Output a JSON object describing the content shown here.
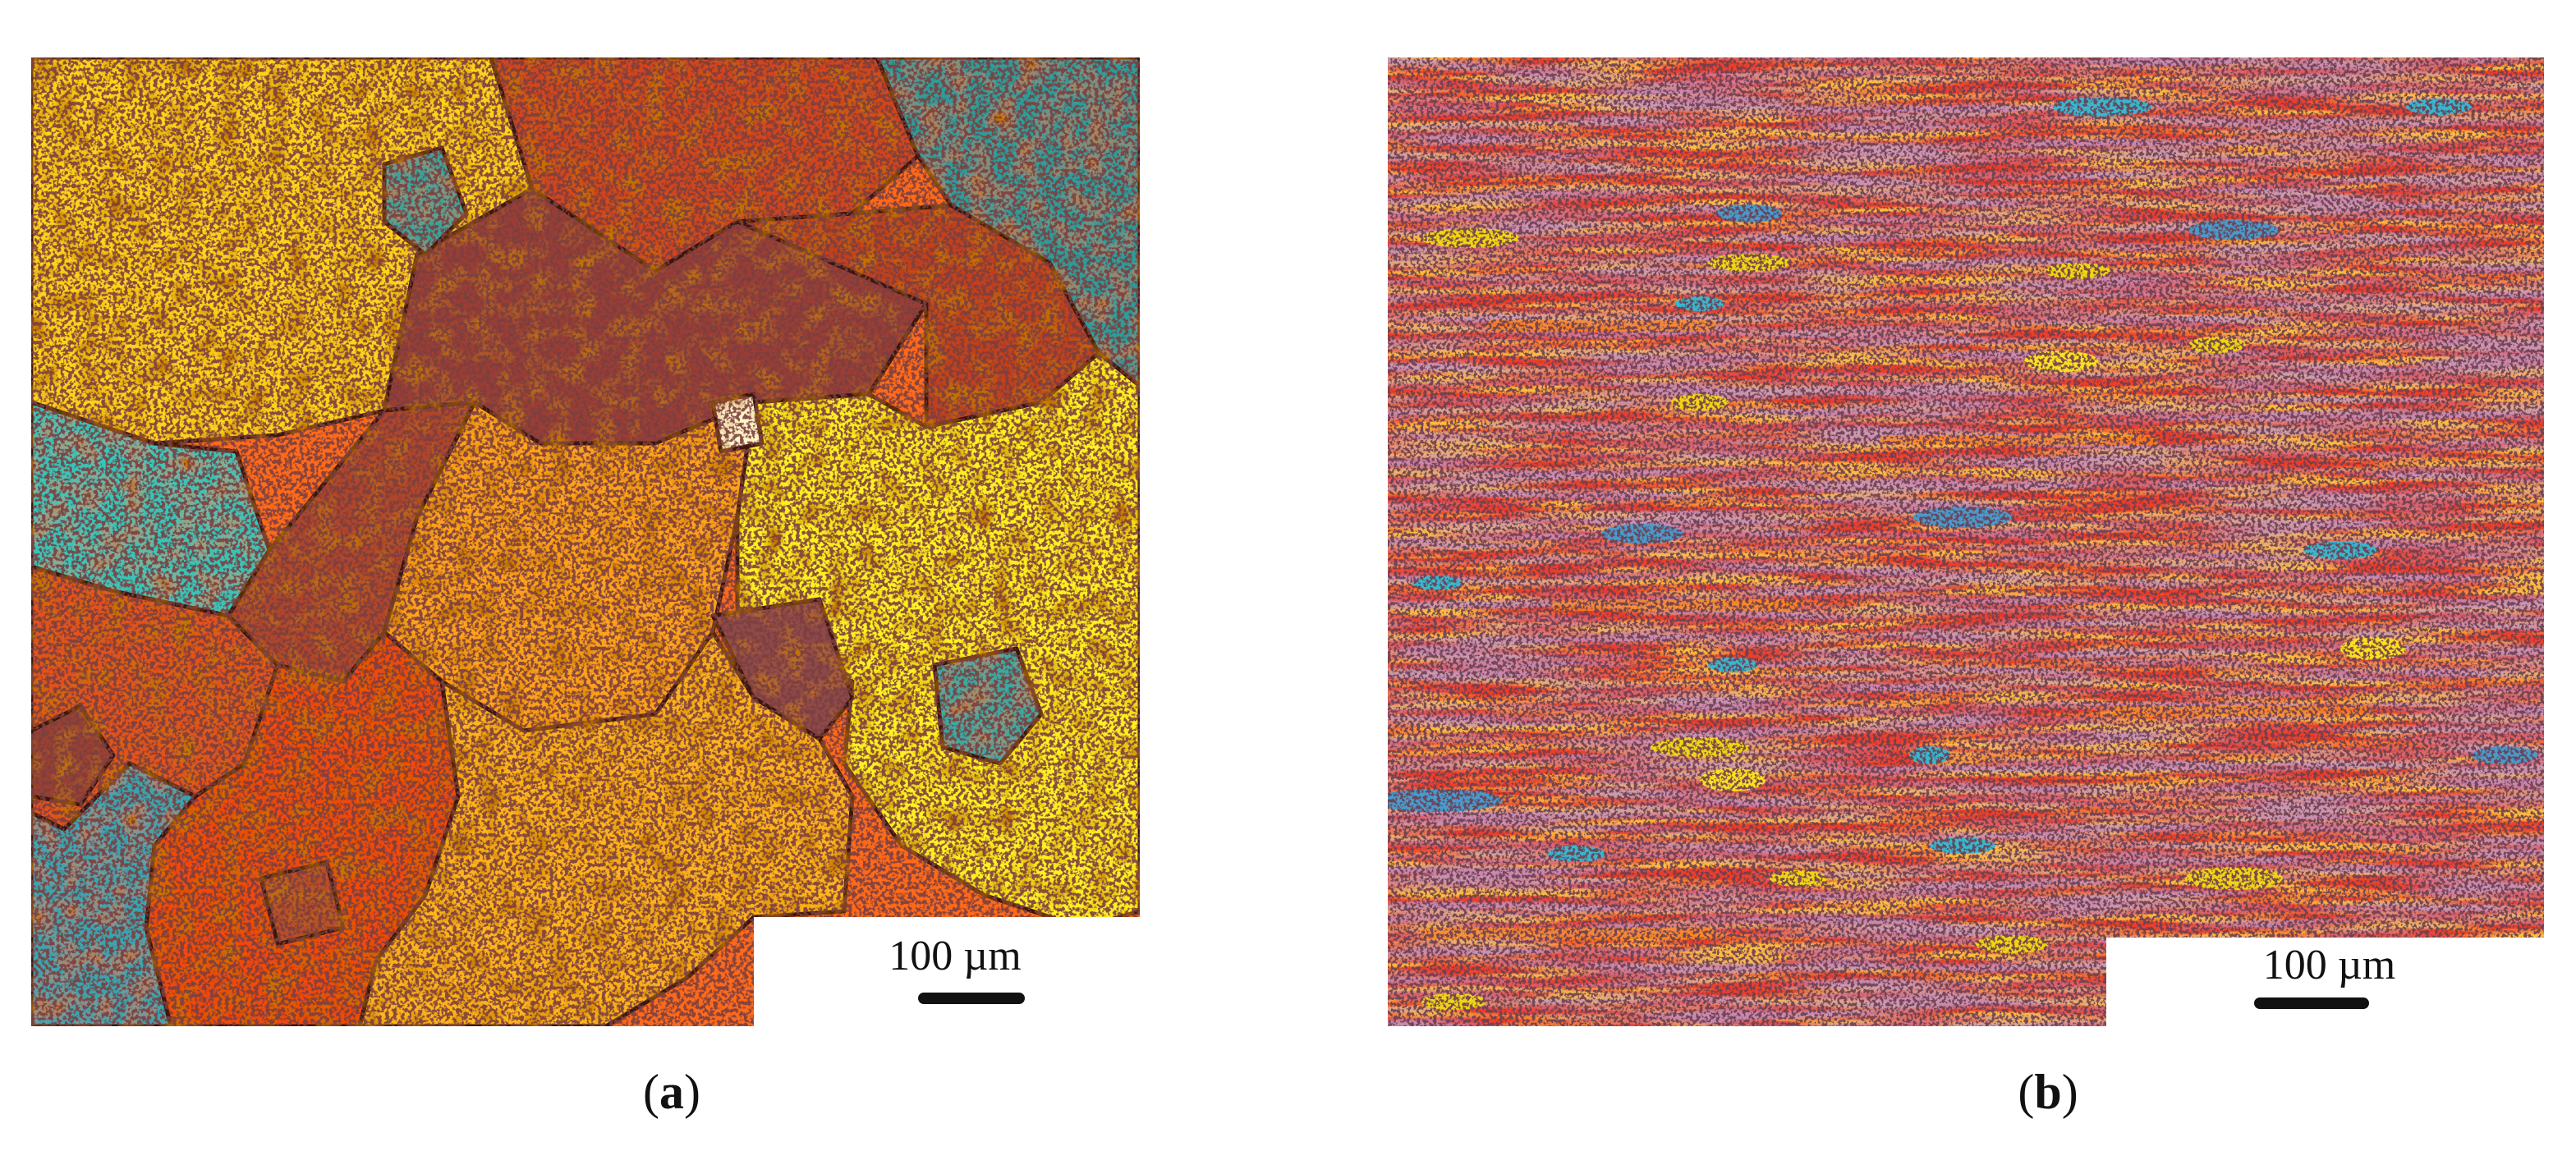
{
  "figure": {
    "panel_a": {
      "scale_label": "100 µm",
      "caption_open": "(",
      "caption_letter": "a",
      "caption_close": ")",
      "colors": [
        "#ff6a00",
        "#ffd700",
        "#ff4500",
        "#9a3c32",
        "#2fb6a8",
        "#f6f000",
        "#3c9aa0"
      ]
    },
    "panel_b": {
      "scale_label": "100 µm",
      "caption_open": "(",
      "caption_letter": "b",
      "caption_close": ")",
      "colors": [
        "#ff4d1f",
        "#e8382c",
        "#ff7a10",
        "#b8507a",
        "#8a5a8a",
        "#f2d414",
        "#38b8d0"
      ]
    }
  }
}
